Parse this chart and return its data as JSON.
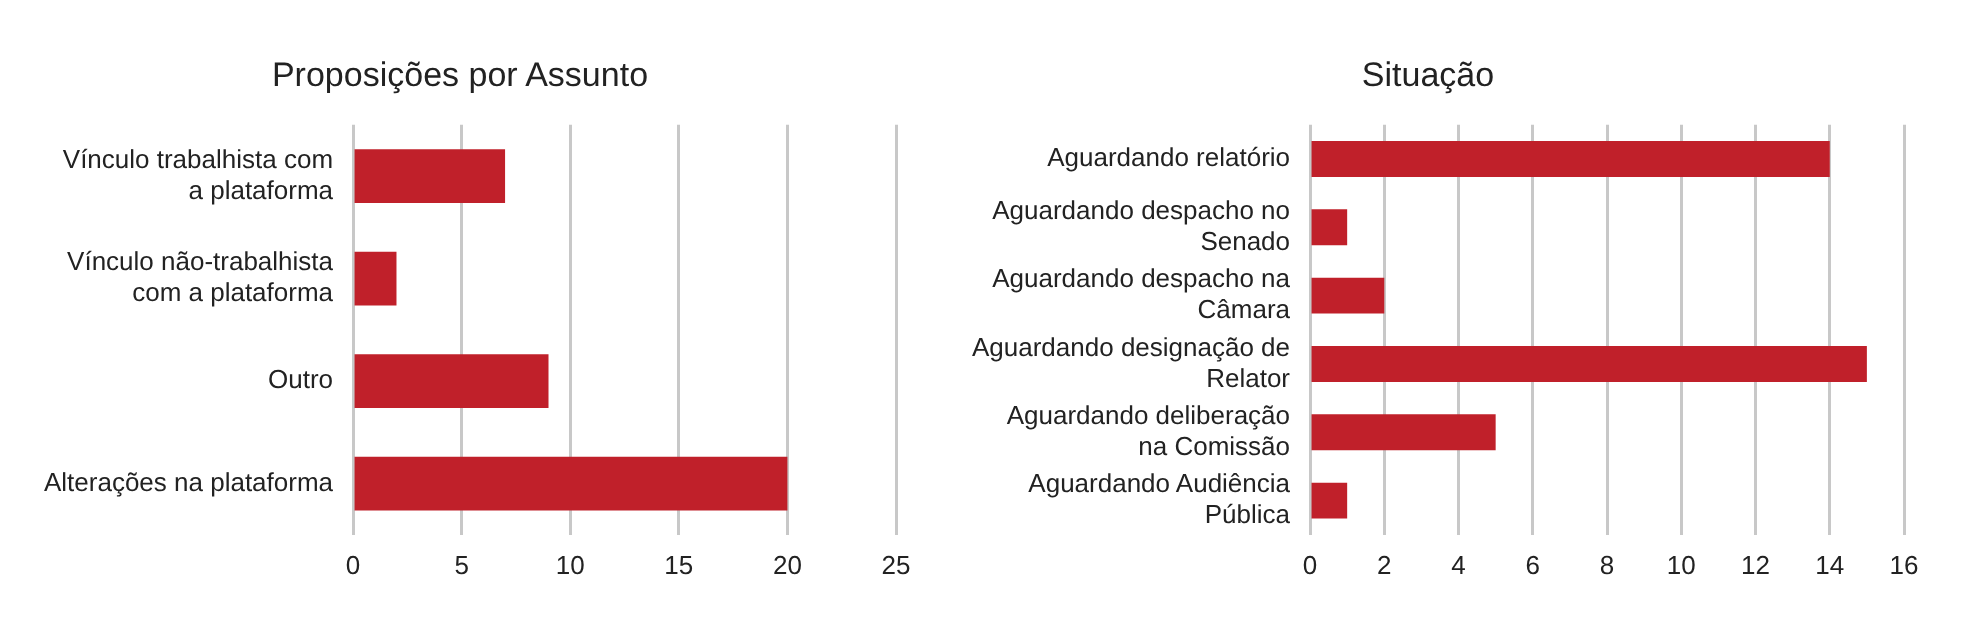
{
  "chart_data": [
    {
      "type": "bar",
      "orientation": "horizontal",
      "title": "Proposições por Assunto",
      "categories": [
        "Vínculo trabalhista com a plataforma",
        "Vínculo não-trabalhista com a plataforma",
        "Outro",
        "Alterações na plataforma"
      ],
      "values": [
        7,
        2,
        9,
        20
      ],
      "color": "#c0202a",
      "xlim": [
        0,
        25
      ],
      "xticks": [
        0,
        5,
        10,
        15,
        20,
        25
      ],
      "grid": "x"
    },
    {
      "type": "bar",
      "orientation": "horizontal",
      "title": "Situação",
      "categories": [
        "Aguardando relatório",
        "Aguardando despacho no Senado",
        "Aguardando despacho na Câmara",
        "Aguardando designação de Relator",
        "Aguardando deliberação na Comissão",
        "Aguardando Audiência Pública"
      ],
      "values": [
        14,
        1,
        2,
        15,
        5,
        1
      ],
      "color": "#c0202a",
      "xlim": [
        0,
        16
      ],
      "xticks": [
        0,
        2,
        4,
        6,
        8,
        10,
        12,
        14,
        16
      ],
      "grid": "x"
    }
  ]
}
